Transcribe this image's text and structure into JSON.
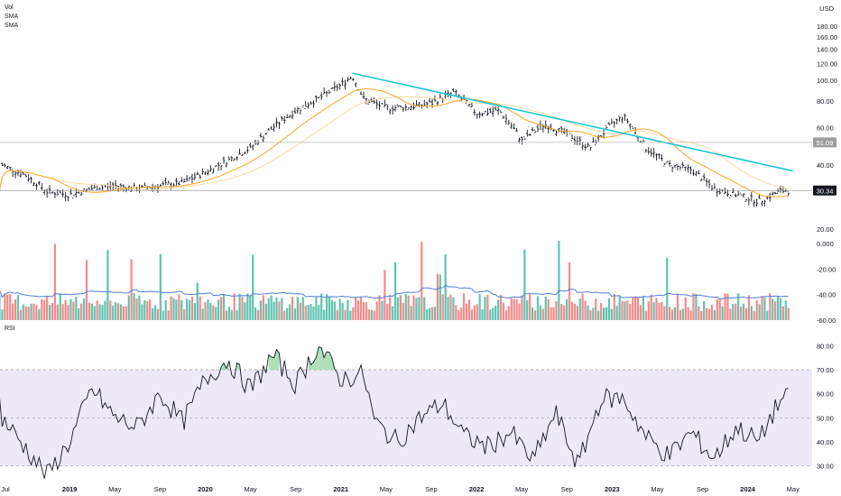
{
  "legend": {
    "line1": "Vol",
    "line2": "SMA",
    "line3": "SMA",
    "rsi_label": "RSI"
  },
  "currency": "USD",
  "colors": {
    "bar": "#131722",
    "sma_fast": "#f5a623",
    "sma_slow": "#f7d9a0",
    "trendline": "#1ec8d4",
    "vol_up": "#5fc4b0",
    "vol_down": "#f28b8b",
    "vol_sma": "#4f7fd9",
    "rsi_line": "#131722",
    "rsi_band": "#ede9f7",
    "rsi_ob_fill": "#9ad7a8",
    "badge": "#9e9e9e"
  },
  "chart_data": [
    {
      "type": "ohlc",
      "panel": "price",
      "y_scale": "log",
      "ylim": [
        20,
        200
      ],
      "y_ticks": [
        "180.00",
        "160.00",
        "140.00",
        "120.00",
        "100.00",
        "80.00",
        "60.00",
        "40.00",
        "20.00"
      ],
      "x_ticks": [
        "Jul",
        "2019",
        "May",
        "Sep",
        "2020",
        "May",
        "Sep",
        "2021",
        "May",
        "Sep",
        "2022",
        "May",
        "Sep",
        "2023",
        "May",
        "Sep",
        "2024",
        "May"
      ],
      "x_tick_values": [
        "2018-07",
        "2019-01",
        "2019-05",
        "2019-09",
        "2020-01",
        "2020-05",
        "2020-09",
        "2021-01",
        "2021-05",
        "2021-09",
        "2022-01",
        "2022-05",
        "2022-09",
        "2023-01",
        "2023-05",
        "2023-09",
        "2024-01",
        "2024-05"
      ],
      "approx_close_path": [
        [
          "2018-07",
          40
        ],
        [
          "2018-09",
          36
        ],
        [
          "2018-11",
          30
        ],
        [
          "2019-01",
          29
        ],
        [
          "2019-03",
          31
        ],
        [
          "2019-05",
          32
        ],
        [
          "2019-07",
          31
        ],
        [
          "2019-09",
          32
        ],
        [
          "2019-11",
          33
        ],
        [
          "2020-01",
          37
        ],
        [
          "2020-03",
          42
        ],
        [
          "2020-05",
          48
        ],
        [
          "2020-07",
          60
        ],
        [
          "2020-09",
          72
        ],
        [
          "2020-11",
          82
        ],
        [
          "2021-01",
          95
        ],
        [
          "2021-02",
          105
        ],
        [
          "2021-03",
          82
        ],
        [
          "2021-05",
          74
        ],
        [
          "2021-07",
          75
        ],
        [
          "2021-09",
          78
        ],
        [
          "2021-11",
          88
        ],
        [
          "2022-01",
          70
        ],
        [
          "2022-03",
          72
        ],
        [
          "2022-05",
          52
        ],
        [
          "2022-07",
          62
        ],
        [
          "2022-09",
          56
        ],
        [
          "2022-11",
          48
        ],
        [
          "2023-01",
          62
        ],
        [
          "2023-02",
          68
        ],
        [
          "2023-04",
          48
        ],
        [
          "2023-06",
          40
        ],
        [
          "2023-08",
          38
        ],
        [
          "2023-10",
          31
        ],
        [
          "2023-12",
          29
        ],
        [
          "2024-02",
          27
        ],
        [
          "2024-04",
          30.34
        ]
      ],
      "trendline": {
        "from": [
          "2021-02",
          108
        ],
        "to": [
          "2024-05",
          37.5
        ]
      },
      "price_badges": [
        "51.09",
        "30.34"
      ]
    },
    {
      "type": "bar",
      "panel": "volume",
      "y_ticks": [
        "0.000",
        "-20.00",
        "-40.00",
        "-60.00"
      ]
    },
    {
      "type": "line",
      "panel": "rsi",
      "ylim": [
        25,
        85
      ],
      "y_ticks": [
        "80.00",
        "70.00",
        "60.00",
        "50.00",
        "40.00",
        "30.00"
      ],
      "overbought": 70,
      "oversold": 30,
      "midline": 50,
      "approx_path": [
        [
          "2018-07",
          50
        ],
        [
          "2018-09",
          38
        ],
        [
          "2018-11",
          26
        ],
        [
          "2019-01",
          40
        ],
        [
          "2019-03",
          62
        ],
        [
          "2019-05",
          50
        ],
        [
          "2019-07",
          46
        ],
        [
          "2019-09",
          60
        ],
        [
          "2019-11",
          48
        ],
        [
          "2020-01",
          66
        ],
        [
          "2020-03",
          74
        ],
        [
          "2020-05",
          62
        ],
        [
          "2020-07",
          76
        ],
        [
          "2020-09",
          64
        ],
        [
          "2020-11",
          80
        ],
        [
          "2021-01",
          66
        ],
        [
          "2021-03",
          68
        ],
        [
          "2021-04",
          48
        ],
        [
          "2021-06",
          40
        ],
        [
          "2021-08",
          50
        ],
        [
          "2021-10",
          56
        ],
        [
          "2021-12",
          42
        ],
        [
          "2022-02",
          38
        ],
        [
          "2022-04",
          44
        ],
        [
          "2022-06",
          32
        ],
        [
          "2022-08",
          52
        ],
        [
          "2022-10",
          30
        ],
        [
          "2022-12",
          58
        ],
        [
          "2023-02",
          58
        ],
        [
          "2023-04",
          42
        ],
        [
          "2023-06",
          34
        ],
        [
          "2023-08",
          44
        ],
        [
          "2023-10",
          33
        ],
        [
          "2023-12",
          46
        ],
        [
          "2024-02",
          40
        ],
        [
          "2024-03",
          50
        ],
        [
          "2024-04",
          58
        ]
      ]
    }
  ]
}
